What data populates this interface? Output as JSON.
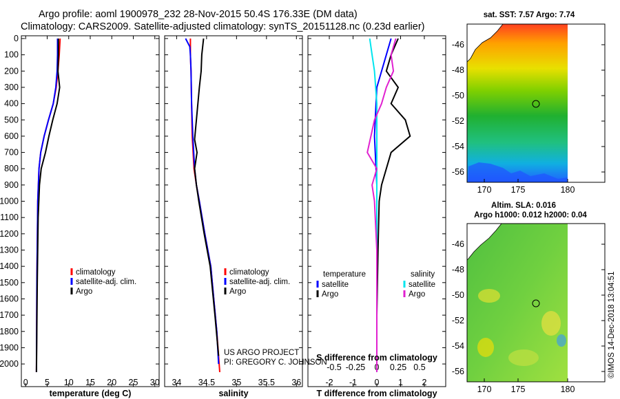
{
  "header": {
    "line1": "Argo profile: aoml 1900978_232 28-Nov-2015 50.4S 176.33E (DM data)",
    "line2": "Climatology: CARS2009. Satellite-adjusted climatology: synTS_20151128.nc (0.23d earlier)"
  },
  "colors": {
    "climatology": "#ff0000",
    "satellite": "#0000ff",
    "argo": "#000000",
    "sat_salinity": "#00e5ee",
    "argo_salinity": "#e020d0"
  },
  "chart_data": [
    {
      "type": "line",
      "name": "temperature-profile",
      "xlabel": "temperature (deg C)",
      "ylabel": "",
      "xlim": [
        -1,
        31
      ],
      "ylim": [
        2080,
        0
      ],
      "xticks": [
        0,
        5,
        10,
        15,
        20,
        25,
        30
      ],
      "yticks": [
        0,
        100,
        200,
        300,
        400,
        500,
        600,
        700,
        800,
        900,
        1000,
        1100,
        1200,
        1300,
        1400,
        1500,
        1600,
        1700,
        1800,
        1900,
        2000
      ],
      "legend": [
        "climatology",
        "satellite-adj. clim.",
        "Argo"
      ],
      "series": [
        {
          "name": "climatology",
          "color": "#ff0000",
          "x": [
            8.0,
            7.8,
            7.5,
            7.1,
            6.4,
            5.3,
            4.3,
            3.5,
            3.1,
            2.8,
            2.6,
            2.5
          ],
          "y": [
            0,
            100,
            200,
            300,
            400,
            500,
            600,
            700,
            800,
            1000,
            1500,
            2050
          ]
        },
        {
          "name": "satellite-adj. clim.",
          "color": "#0000ff",
          "x": [
            7.4,
            7.4,
            7.3,
            7.0,
            6.4,
            5.3,
            4.3,
            3.5,
            3.1,
            2.8,
            2.6,
            2.5
          ],
          "y": [
            0,
            100,
            200,
            300,
            400,
            500,
            600,
            700,
            800,
            1000,
            1500,
            2050
          ]
        },
        {
          "name": "Argo",
          "color": "#000000",
          "x": [
            7.6,
            7.6,
            7.5,
            7.9,
            7.3,
            6.3,
            5.4,
            4.6,
            3.6,
            3.2,
            2.9,
            2.7,
            2.5
          ],
          "y": [
            0,
            100,
            200,
            300,
            400,
            500,
            600,
            700,
            800,
            900,
            1100,
            1500,
            2050
          ]
        }
      ]
    },
    {
      "type": "line",
      "name": "salinity-profile",
      "xlabel": "salinity",
      "ylabel": "",
      "xlim": [
        33.8,
        36.1
      ],
      "ylim": [
        2080,
        0
      ],
      "xticks": [
        34,
        34.5,
        35,
        35.5,
        36
      ],
      "legend": [
        "climatology",
        "satellite-adj. clim.",
        "Argo"
      ],
      "annotation": [
        "US ARGO PROJECT",
        "PI: GREGORY C. JOHNSON"
      ],
      "series": [
        {
          "name": "climatology",
          "color": "#ff0000",
          "x": [
            34.23,
            34.23,
            34.24,
            34.25,
            34.26,
            34.29,
            34.33,
            34.38,
            34.47,
            34.57,
            34.62,
            34.67,
            34.7,
            34.72
          ],
          "y": [
            0,
            100,
            200,
            400,
            600,
            800,
            900,
            1000,
            1200,
            1400,
            1600,
            1800,
            1950,
            2050
          ]
        },
        {
          "name": "satellite-adj. clim.",
          "color": "#0000ff",
          "x": [
            34.15,
            34.22,
            34.23,
            34.24,
            34.25,
            34.27,
            34.3,
            34.33,
            34.38,
            34.47,
            34.57,
            34.62,
            34.67,
            34.7
          ],
          "y": [
            0,
            50,
            100,
            200,
            400,
            600,
            800,
            900,
            1000,
            1200,
            1400,
            1600,
            1800,
            2000
          ]
        },
        {
          "name": "Argo",
          "color": "#000000",
          "x": [
            34.45,
            34.42,
            34.41,
            34.38,
            34.33,
            34.3,
            34.34,
            34.3,
            34.33,
            34.37,
            34.46,
            34.56,
            34.64,
            34.7
          ],
          "y": [
            0,
            100,
            200,
            300,
            500,
            620,
            700,
            800,
            900,
            1000,
            1200,
            1400,
            1700,
            1950
          ]
        }
      ]
    },
    {
      "type": "line",
      "name": "difference-profile",
      "xlabel": "T difference from climatology",
      "xlabel_top": "S difference from climatology",
      "ylabel": "",
      "xlim": [
        -2.9,
        2.9
      ],
      "ylim": [
        2080,
        0
      ],
      "xticks": [
        -2,
        -1,
        0,
        1,
        2
      ],
      "xticks_s": [
        "-0.5",
        "-0.25",
        "0",
        "0.25",
        "0.5"
      ],
      "legend_temperature_title": "temperature",
      "legend_salinity_title": "salinity",
      "legend_temperature": [
        "satellite",
        "Argo"
      ],
      "legend_salinity": [
        "satellite",
        "Argo"
      ],
      "series": [
        {
          "name": "satellite",
          "group": "temperature",
          "color": "#0000ff",
          "x": [
            0.6,
            0.4,
            0.0,
            -0.1,
            0.0,
            0.0,
            0.0,
            0.0,
            0.0
          ],
          "y": [
            0,
            100,
            300,
            600,
            900,
            1200,
            1500,
            1800,
            2050
          ]
        },
        {
          "name": "Argo",
          "group": "temperature",
          "color": "#000000",
          "x": [
            0.9,
            0.6,
            0.4,
            0.9,
            0.6,
            1.2,
            1.4,
            0.6,
            0.4,
            0.2,
            0.1,
            0.05,
            0.0,
            0.0
          ],
          "y": [
            0,
            100,
            200,
            300,
            400,
            500,
            600,
            700,
            800,
            900,
            1000,
            1300,
            1700,
            2050
          ]
        },
        {
          "name": "satellite",
          "group": "salinity",
          "color": "#00e5ee",
          "x": [
            -0.3,
            -0.2,
            -0.1,
            0.0,
            0.0,
            0.0,
            0.0,
            0.0
          ],
          "y": [
            0,
            100,
            200,
            400,
            700,
            1000,
            1500,
            2050
          ]
        },
        {
          "name": "Argo",
          "group": "salinity",
          "color": "#e020d0",
          "x": [
            0.8,
            0.6,
            0.7,
            0.4,
            0.2,
            -0.1,
            -0.4,
            0.0,
            -0.2,
            -0.1,
            0.0,
            0.0,
            0.0
          ],
          "y": [
            0,
            100,
            200,
            300,
            400,
            500,
            700,
            800,
            900,
            1000,
            1300,
            1700,
            2050
          ]
        }
      ]
    }
  ],
  "maps": [
    {
      "title": "sat. SST: 7.57 Argo: 7.74",
      "lon_ticks": [
        "170",
        "175",
        "180"
      ],
      "lat_ticks": [
        "-46",
        "-48",
        "-50",
        "-52",
        "-54",
        "-56"
      ]
    },
    {
      "title_line1": "Altim. SLA: 0.016",
      "title_line2": "Argo h1000: 0.012 h2000: 0.04",
      "lon_ticks": [
        "170",
        "175",
        "180"
      ],
      "lat_ticks": [
        "-46",
        "-48",
        "-50",
        "-52",
        "-54",
        "-56"
      ]
    }
  ],
  "credit": "©IMOS 14-Dec-2018 13:04:51"
}
